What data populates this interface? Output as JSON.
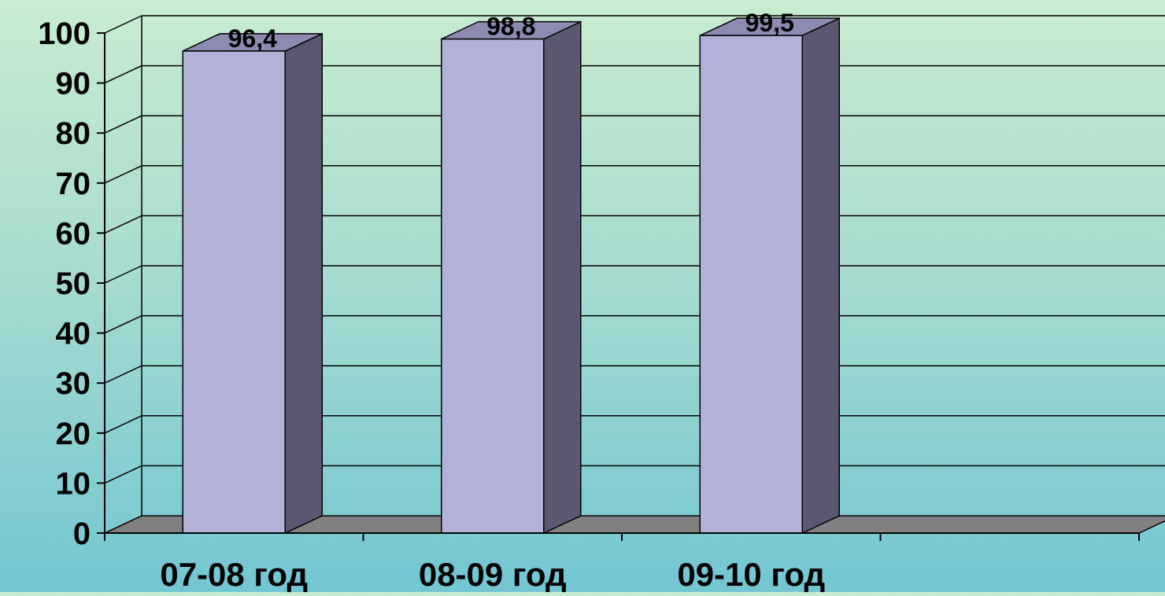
{
  "chart_data": {
    "type": "bar",
    "style": "3d-column",
    "title": "",
    "xlabel": "",
    "ylabel": "",
    "categories": [
      "07-08 год",
      "08-09 год",
      "09-10 год"
    ],
    "values": [
      96.4,
      98.8,
      99.5
    ],
    "data_labels": [
      "96,4",
      "98,8",
      "99,5"
    ],
    "ylim": [
      0,
      100
    ],
    "yticks": [
      0,
      10,
      20,
      30,
      40,
      50,
      60,
      70,
      80,
      90,
      100
    ],
    "grid": true,
    "legend": "none",
    "colors": {
      "bar_front": "#b3b0da",
      "bar_side": "#5a5770",
      "bar_top": "#8e8bb2",
      "floor": "#808080",
      "gridline": "#000000",
      "text": "#000000"
    }
  }
}
